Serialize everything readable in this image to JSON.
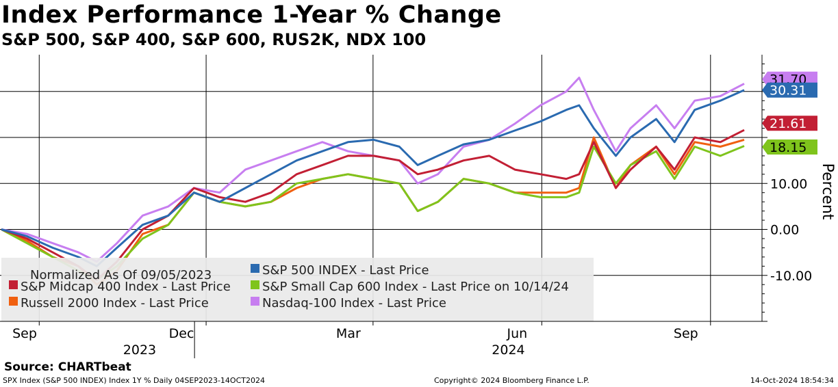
{
  "chart_data": {
    "type": "line",
    "title": "Index Performance 1-Year % Change",
    "subtitle": "S&P 500, S&P 400, S&P 600, RUS2K, NDX 100",
    "ylabel": "Percent",
    "ylim": [
      -20,
      38
    ],
    "y_ticks": [
      {
        "value": 10,
        "label": "10.00"
      },
      {
        "value": 0,
        "label": "0.00"
      },
      {
        "value": -10,
        "label": "-10.00"
      }
    ],
    "y_grid": [
      30,
      20,
      10,
      0,
      -10
    ],
    "x_start": "2023-09-05",
    "x_end": "2024-10-14",
    "x_ticks": [
      {
        "date": "2023-09-01",
        "label": "Sep"
      },
      {
        "date": "2023-12-01",
        "label": "Dec"
      },
      {
        "date": "2024-03-01",
        "label": "Mar"
      },
      {
        "date": "2024-06-01",
        "label": "Jun"
      },
      {
        "date": "2024-09-01",
        "label": "Sep"
      }
    ],
    "year_labels": [
      {
        "date": "2023-10-28",
        "label": "2023"
      },
      {
        "date": "2024-05-16",
        "label": "2024"
      }
    ],
    "year_separator_date": "2024-01-01",
    "dates": [
      "2023-09-05",
      "2023-09-19",
      "2023-10-03",
      "2023-10-17",
      "2023-10-27",
      "2023-11-07",
      "2023-11-21",
      "2023-12-05",
      "2023-12-19",
      "2024-01-02",
      "2024-01-16",
      "2024-01-30",
      "2024-02-13",
      "2024-02-27",
      "2024-03-12",
      "2024-03-26",
      "2024-04-09",
      "2024-04-19",
      "2024-04-30",
      "2024-05-14",
      "2024-05-28",
      "2024-06-11",
      "2024-06-25",
      "2024-07-09",
      "2024-07-16",
      "2024-07-24",
      "2024-08-05",
      "2024-08-13",
      "2024-08-27",
      "2024-09-06",
      "2024-09-17",
      "2024-10-01",
      "2024-10-14"
    ],
    "series": [
      {
        "name": "S&P 500 INDEX - Last Price",
        "color": "#2a6ab0",
        "last_value_label": "30.31",
        "values": [
          0,
          -1.5,
          -4,
          -6,
          -8,
          -4,
          1,
          3,
          8,
          6,
          9,
          12,
          15,
          17,
          19,
          19.5,
          18,
          14,
          16,
          18.5,
          19.5,
          21.5,
          23.5,
          26,
          27,
          22,
          16,
          20,
          24,
          19,
          26,
          28,
          30.31
        ]
      },
      {
        "name": "S&P Midcap 400 Index - Last Price",
        "color": "#c21f34",
        "last_value_label": "21.61",
        "values": [
          0,
          -2,
          -5,
          -8,
          -11,
          -7,
          0,
          3,
          9,
          7,
          6,
          8,
          12,
          14,
          16,
          16,
          15,
          12,
          13,
          15,
          16,
          13,
          12,
          11,
          12,
          19,
          9,
          13,
          18,
          13,
          20,
          19,
          21.61
        ]
      },
      {
        "name": "S&P Small Cap 600 Index - Last Price on 10/14/24",
        "color": "#7fc41c",
        "last_value_label": "18.15",
        "values": [
          0,
          -3,
          -6,
          -9,
          -11,
          -8,
          -2,
          1,
          8,
          6,
          5,
          6,
          10,
          11,
          12,
          11,
          10,
          4,
          6,
          11,
          10,
          8,
          7,
          7,
          8,
          18,
          10,
          14,
          17,
          11,
          18,
          16,
          18.15
        ]
      },
      {
        "name": "Russell 2000 Index - Last Price",
        "color": "#f06010",
        "last_value_label": "",
        "values": [
          0,
          -2.5,
          -6,
          -8,
          -12,
          -9,
          -1,
          1,
          8,
          6,
          5,
          6,
          9,
          11,
          12,
          11,
          10,
          4,
          6,
          11,
          10,
          8,
          8,
          8,
          9,
          20,
          9,
          14,
          18,
          12,
          19,
          18,
          19.5
        ]
      },
      {
        "name": "Nasdaq-100 Index - Last Price",
        "color": "#c77ef0",
        "last_value_label": "31.70",
        "values": [
          0,
          -1,
          -3,
          -5,
          -7,
          -3,
          3,
          5,
          9,
          8,
          13,
          15,
          17,
          19,
          17,
          16,
          15,
          10,
          12,
          18,
          19.5,
          23,
          27,
          30,
          33,
          26,
          17,
          22,
          27,
          22,
          28,
          29,
          31.7
        ]
      }
    ],
    "legend": {
      "note": "Normalized As Of 09/05/2023",
      "entries": [
        "S&P 500 INDEX - Last Price",
        "S&P Midcap 400 Index - Last Price",
        "S&P Small Cap 600 Index - Last Price on 10/14/24",
        "Russell 2000 Index - Last Price",
        "Nasdaq-100 Index - Last Price"
      ]
    }
  },
  "source": "Source: CHARTbeat",
  "footer": {
    "left": "SPX Index (S&P 500 INDEX) Index 1Y %  Daily 04SEP2023-14OCT2024",
    "center": "Copyright© 2024 Bloomberg Finance L.P.",
    "right": "14-Oct-2024 18:54:34"
  }
}
